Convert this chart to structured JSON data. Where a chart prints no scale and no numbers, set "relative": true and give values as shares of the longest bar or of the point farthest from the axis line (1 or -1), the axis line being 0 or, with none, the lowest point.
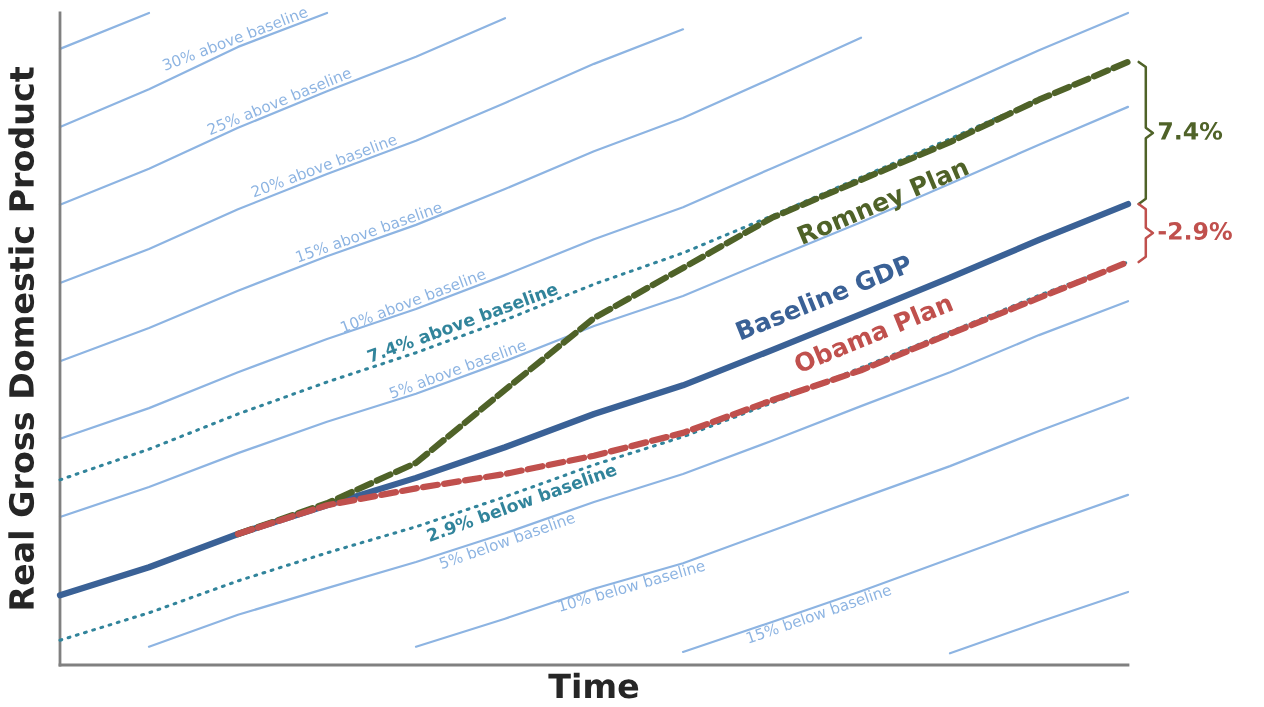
{
  "chart_data": {
    "type": "line",
    "relative": true,
    "xlabel": "Time",
    "ylabel": "Real Gross Domestic Product",
    "categories": [
      null,
      null,
      null,
      null,
      null,
      null,
      null,
      null,
      null,
      null,
      null,
      null,
      null
    ],
    "series": [
      {
        "name": "30% above baseline",
        "color": "#8db4e2",
        "line_style": "solid",
        "values": [
          0.825,
          0.883,
          0.948,
          1,
          null,
          null,
          null,
          null,
          null,
          null,
          null,
          null,
          null
        ]
      },
      {
        "name": null,
        "color": "#8db4e2",
        "line_style": "solid",
        "values": [
          0.945,
          1,
          null,
          null,
          null,
          null,
          null,
          null,
          null,
          null,
          null,
          null,
          null
        ]
      },
      {
        "name": "25% above baseline",
        "color": "#8db4e2",
        "line_style": "solid",
        "values": [
          0.706,
          0.761,
          0.824,
          0.88,
          0.933,
          0.992,
          null,
          null,
          null,
          null,
          null,
          null,
          null
        ]
      },
      {
        "name": "20% above baseline",
        "color": "#8db4e2",
        "line_style": "solid",
        "values": [
          0.586,
          0.638,
          0.699,
          0.753,
          0.804,
          0.862,
          0.922,
          0.975,
          null,
          null,
          null,
          null,
          null
        ]
      },
      {
        "name": "15% above baseline",
        "color": "#8db4e2",
        "line_style": "solid",
        "values": [
          0.466,
          0.517,
          0.574,
          0.627,
          0.675,
          0.73,
          0.788,
          0.839,
          0.9,
          0.962,
          null,
          null,
          null
        ]
      },
      {
        "name": "10% above baseline",
        "color": "#8db4e2",
        "line_style": "solid",
        "values": [
          0.347,
          0.394,
          0.449,
          0.5,
          0.546,
          0.598,
          0.653,
          0.702,
          0.762,
          0.821,
          0.882,
          0.943,
          1
        ]
      },
      {
        "name": "5% above baseline",
        "color": "#8db4e2",
        "line_style": "solid",
        "values": [
          0.227,
          0.273,
          0.325,
          0.373,
          0.416,
          0.466,
          0.52,
          0.566,
          0.623,
          0.679,
          0.738,
          0.798,
          0.856
        ]
      },
      {
        "name": "5% below baseline",
        "color": "#8db4e2",
        "line_style": "solid",
        "values": [
          null,
          0.028,
          0.077,
          0.118,
          0.158,
          0.202,
          0.25,
          0.293,
          0.344,
          0.397,
          0.449,
          0.506,
          0.558
        ]
      },
      {
        "name": "10% below baseline",
        "color": "#8db4e2",
        "line_style": "solid",
        "values": [
          null,
          null,
          null,
          null,
          0.028,
          0.071,
          0.117,
          0.156,
          0.206,
          0.256,
          0.305,
          0.359,
          0.41
        ]
      },
      {
        "name": "15% below baseline",
        "color": "#8db4e2",
        "line_style": "solid",
        "values": [
          null,
          null,
          null,
          null,
          null,
          null,
          null,
          0.02,
          0.066,
          0.113,
          0.163,
          0.213,
          0.261
        ]
      },
      {
        "name": null,
        "color": "#8db4e2",
        "line_style": "solid",
        "values": [
          null,
          null,
          null,
          null,
          null,
          null,
          null,
          null,
          null,
          null,
          0.018,
          0.066,
          0.112
        ]
      },
      {
        "name": "7.4% above baseline",
        "color": "#31849b",
        "line_style": "dotted",
        "values": [
          0.284,
          0.331,
          0.385,
          0.434,
          0.479,
          0.529,
          0.584,
          0.632,
          0.689,
          0.748,
          0.807,
          0.868,
          0.925
        ]
      },
      {
        "name": "2.9% below baseline",
        "color": "#31849b",
        "line_style": "dotted",
        "values": [
          0.038,
          0.08,
          0.129,
          0.172,
          0.212,
          0.258,
          0.307,
          0.35,
          0.402,
          0.456,
          0.511,
          0.567,
          0.618
        ]
      },
      {
        "name": "Baseline GDP",
        "color": "#3a6196",
        "line_style": "solid",
        "values": [
          0.107,
          0.15,
          0.201,
          0.245,
          0.287,
          0.334,
          0.385,
          0.429,
          0.483,
          0.538,
          0.594,
          0.652,
          0.707
        ]
      },
      {
        "name": "Romney Plan",
        "color": "#4f6228",
        "line_style": "dashed",
        "values": [
          null,
          null,
          0.201,
          0.248,
          0.31,
          0.422,
          0.532,
          0.609,
          0.686,
          0.744,
          0.802,
          0.867,
          0.925
        ]
      },
      {
        "name": "Obama Plan",
        "color": "#c0504d",
        "line_style": "dashed",
        "values": [
          null,
          null,
          0.201,
          0.245,
          0.271,
          0.293,
          0.321,
          0.356,
          0.406,
          0.452,
          0.508,
          0.563,
          0.618
        ]
      }
    ],
    "annotations": [
      "7.4%",
      "-2.9%"
    ]
  }
}
